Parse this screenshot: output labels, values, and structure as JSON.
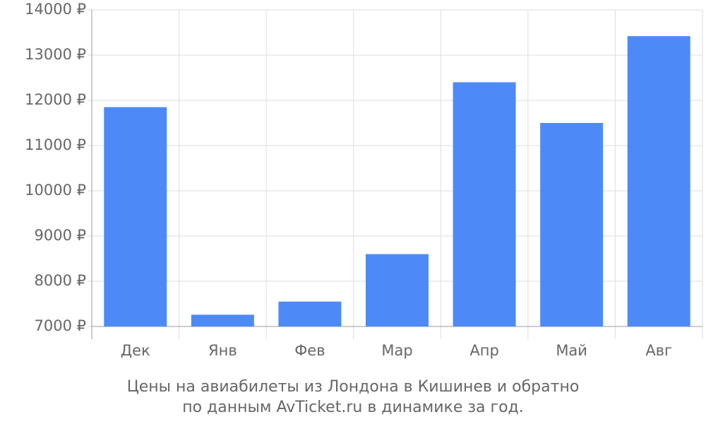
{
  "chart_data": {
    "type": "bar",
    "title_lines": [
      "Цены на авиабилеты из Лондона в Кишинев и обратно",
      "по данным AvTicket.ru в динамике за год."
    ],
    "categories": [
      "Дек",
      "Янв",
      "Фев",
      "Мар",
      "Апр",
      "Май",
      "Авг"
    ],
    "values": [
      11850,
      7260,
      7550,
      8600,
      12400,
      11500,
      13420
    ],
    "color": "#4d8af8",
    "ylim": [
      7000,
      14000
    ],
    "yticks": [
      {
        "value": 7000,
        "label": "7000 ₽"
      },
      {
        "value": 8000,
        "label": "8000 ₽"
      },
      {
        "value": 9000,
        "label": "9000 ₽"
      },
      {
        "value": 10000,
        "label": "10000 ₽"
      },
      {
        "value": 11000,
        "label": "11000 ₽"
      },
      {
        "value": 12000,
        "label": "12000 ₽"
      },
      {
        "value": 13000,
        "label": "13000 ₽"
      },
      {
        "value": 14000,
        "label": "14000 ₽"
      }
    ],
    "grid": true
  }
}
